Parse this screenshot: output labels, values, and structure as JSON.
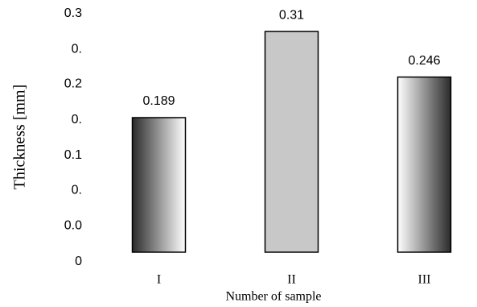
{
  "chart_data": {
    "type": "bar",
    "categories": [
      "I",
      "II",
      "III"
    ],
    "values": [
      0.189,
      0.31,
      0.246
    ],
    "value_labels": [
      "0.189",
      "0.31",
      "0.246"
    ],
    "fills": [
      [
        "#2a2a2a",
        "#ffffff"
      ],
      [
        "#c8c8c8",
        "#c8c8c8"
      ],
      [
        "#ffffff",
        "#2a2a2a"
      ]
    ],
    "xlabel": "Number of sample",
    "ylabel": "Thickness [mm]",
    "ylim": [
      -0.0136,
      0.335
    ],
    "yticks": [
      {
        "value": 0.335,
        "label": "0.3"
      },
      {
        "value": 0.285,
        "label": "0."
      },
      {
        "value": 0.236,
        "label": "0.2"
      },
      {
        "value": 0.186,
        "label": "0."
      },
      {
        "value": 0.136,
        "label": "0.1"
      },
      {
        "value": 0.087,
        "label": "0."
      },
      {
        "value": 0.037,
        "label": "0.0"
      },
      {
        "value": -0.0136,
        "label": "0"
      }
    ]
  }
}
